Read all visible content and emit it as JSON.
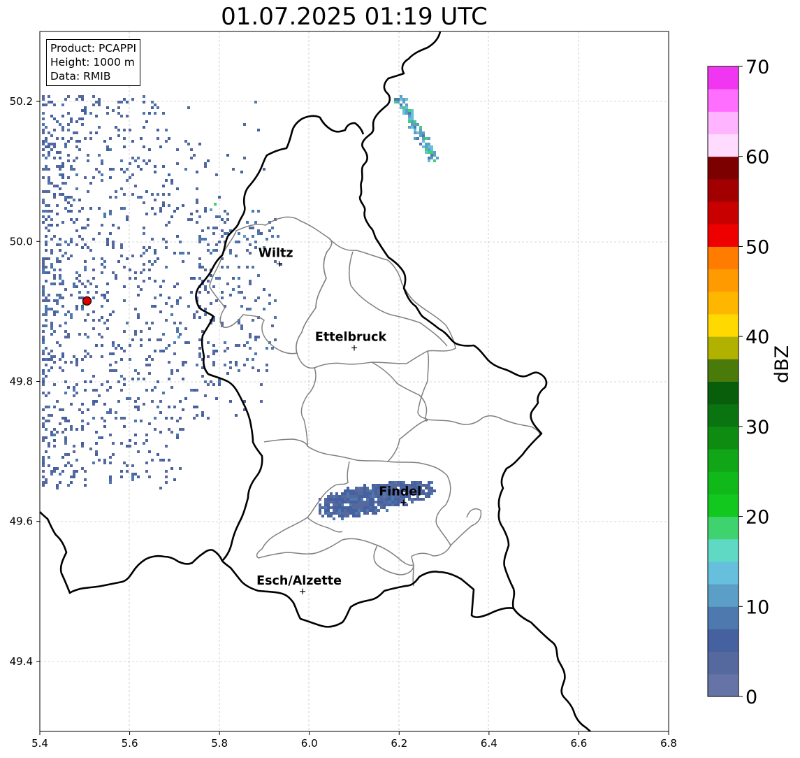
{
  "title": "01.07.2025 01:19 UTC",
  "info": {
    "product": "Product: PCAPPI",
    "height": "Height: 1000 m",
    "data": "Data: RMIB"
  },
  "map": {
    "lon_range": [
      5.4,
      6.8
    ],
    "lat_range": [
      49.3,
      50.3
    ],
    "x_ticks": [
      "5.4",
      "5.6",
      "5.8",
      "6.0",
      "6.2",
      "6.4",
      "6.6",
      "6.8"
    ],
    "y_ticks": [
      "49.4",
      "49.6",
      "49.8",
      "50.0",
      "50.2"
    ],
    "grid": true
  },
  "cities": [
    {
      "name": "Wiltz",
      "lon": 5.933,
      "lat": 49.968
    },
    {
      "name": "Ettelbruck",
      "lon": 6.1,
      "lat": 49.848
    },
    {
      "name": "Findel",
      "lon": 6.21,
      "lat": 49.627
    },
    {
      "name": "Esch/Alzette",
      "lon": 5.985,
      "lat": 49.5
    }
  ],
  "radar_site": {
    "lon": 5.505,
    "lat": 49.915,
    "color": "#dd0000"
  },
  "colorbar": {
    "label": "dBZ",
    "min": 0,
    "max": 70,
    "ticks": [
      "0",
      "10",
      "20",
      "30",
      "40",
      "50",
      "60",
      "70"
    ],
    "colors": [
      "#6673a6",
      "#56699f",
      "#4561a0",
      "#4d79ae",
      "#5b9ec6",
      "#66c0dd",
      "#5fd9c4",
      "#3ed36e",
      "#12c71d",
      "#10b81a",
      "#10a617",
      "#0e8c12",
      "#0a7510",
      "#085e0a",
      "#4a7a0a",
      "#b1b100",
      "#ffd900",
      "#ffb600",
      "#ff9a00",
      "#ff7c00",
      "#ee0000",
      "#c80000",
      "#a20000",
      "#7d0000",
      "#ffdbff",
      "#ffb4ff",
      "#ff6eff",
      "#f036f0"
    ]
  }
}
